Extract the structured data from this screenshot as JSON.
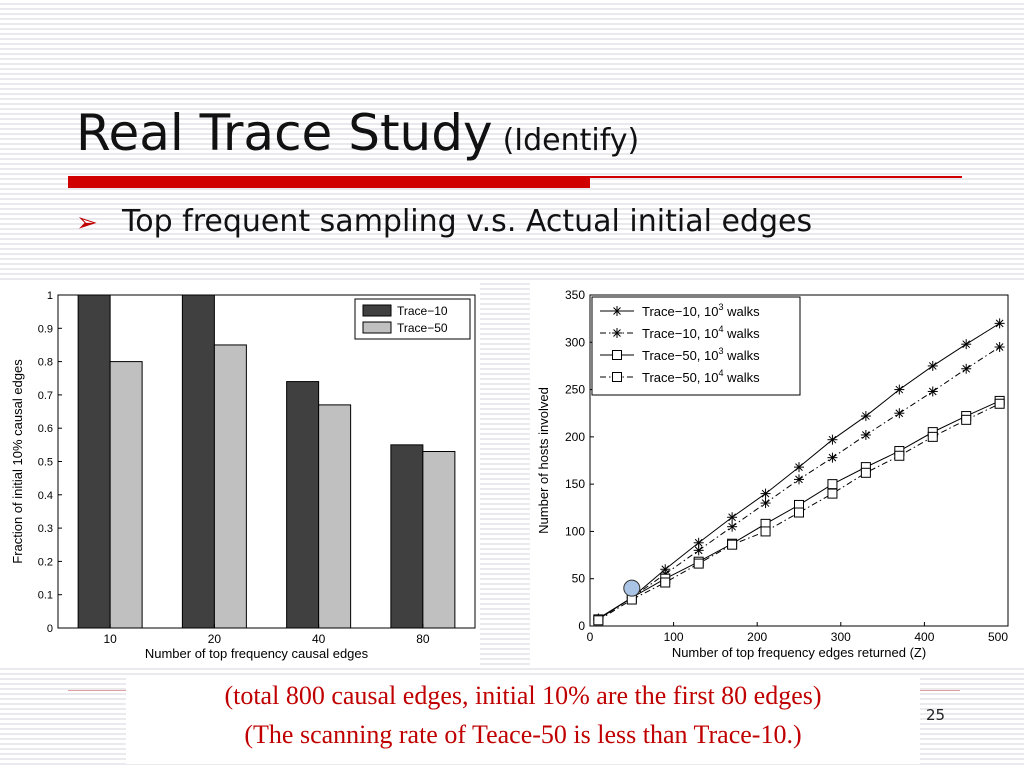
{
  "slide": {
    "title": "Real Trace Study",
    "title_suffix": "(Identify)",
    "bullet": "Top frequent sampling v.s. Actual initial edges",
    "note_line1": "(total 800 causal edges, initial 10% are the first 80 edges)",
    "note_line2": "(The scanning rate of Teace-50 is less than Trace-10.)",
    "page_number": "25",
    "colors": {
      "accent": "#d10000",
      "note": "#c00000"
    }
  },
  "chart_data": [
    {
      "type": "bar",
      "title": "",
      "xlabel": "Number of top frequency causal edges",
      "ylabel": "Fraction of initial 10% causal edges",
      "categories": [
        "10",
        "20",
        "40",
        "80"
      ],
      "series": [
        {
          "name": "Trace−10",
          "values": [
            1.0,
            1.0,
            0.74,
            0.55
          ],
          "color": "#404040"
        },
        {
          "name": "Trace−50",
          "values": [
            0.8,
            0.85,
            0.67,
            0.53
          ],
          "color": "#c0c0c0"
        }
      ],
      "ylim": [
        0,
        1
      ],
      "yticks": [
        "0",
        "0.1",
        "0.2",
        "0.3",
        "0.4",
        "0.5",
        "0.6",
        "0.7",
        "0.8",
        "0.9",
        "1"
      ],
      "legend": "top-right",
      "grid": false
    },
    {
      "type": "line",
      "title": "",
      "xlabel": "Number of top frequency edges returned (Z)",
      "ylabel": "Number of hosts involved",
      "xlim": [
        0,
        500
      ],
      "ylim": [
        0,
        350
      ],
      "xticks": [
        "0",
        "100",
        "200",
        "300",
        "400",
        "500"
      ],
      "yticks": [
        "0",
        "50",
        "100",
        "150",
        "200",
        "250",
        "300",
        "350"
      ],
      "legend": "top-left",
      "grid": false,
      "series": [
        {
          "name": "Trace−10, 10",
          "sup": "3",
          "suffix": " walks",
          "marker": "star",
          "dash": "solid",
          "x": [
            10,
            50,
            90,
            130,
            170,
            210,
            250,
            290,
            330,
            370,
            410,
            450,
            490
          ],
          "y": [
            8,
            30,
            60,
            88,
            115,
            140,
            168,
            197,
            222,
            250,
            275,
            298,
            320
          ]
        },
        {
          "name": "Trace−10, 10",
          "sup": "4",
          "suffix": " walks",
          "marker": "star",
          "dash": "dashdot",
          "x": [
            10,
            50,
            90,
            130,
            170,
            210,
            250,
            290,
            330,
            370,
            410,
            450,
            490
          ],
          "y": [
            7,
            30,
            55,
            80,
            105,
            130,
            155,
            178,
            202,
            225,
            248,
            272,
            295
          ]
        },
        {
          "name": "Trace−50, 10",
          "sup": "3",
          "suffix": " walks",
          "marker": "square",
          "dash": "solid",
          "x": [
            10,
            50,
            90,
            130,
            170,
            210,
            250,
            290,
            330,
            370,
            410,
            450,
            490
          ],
          "y": [
            7,
            30,
            50,
            68,
            87,
            108,
            128,
            150,
            168,
            185,
            205,
            222,
            238
          ]
        },
        {
          "name": "Trace−50, 10",
          "sup": "4",
          "suffix": " walks",
          "marker": "square",
          "dash": "dashdot",
          "x": [
            10,
            50,
            90,
            130,
            170,
            210,
            250,
            290,
            330,
            370,
            410,
            450,
            490
          ],
          "y": [
            6,
            28,
            46,
            66,
            86,
            100,
            120,
            140,
            162,
            180,
            200,
            218,
            235
          ]
        }
      ],
      "annotations": [
        {
          "type": "circle",
          "x": 50,
          "y": 40,
          "color": "#a9c4e4"
        }
      ]
    }
  ]
}
